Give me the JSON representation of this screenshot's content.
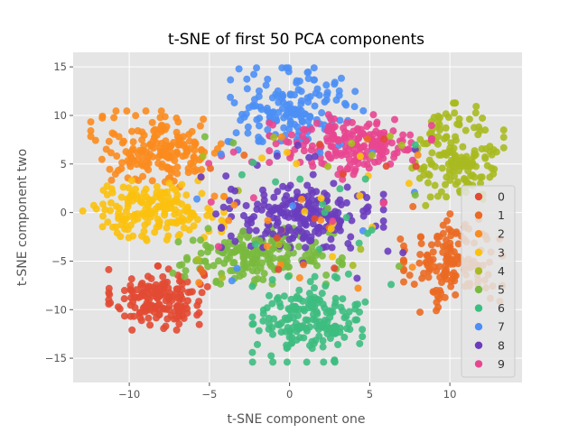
{
  "chart_data": {
    "type": "scatter",
    "title": "t-SNE of first 50 PCA components",
    "xlabel": "t-SNE component one",
    "ylabel": "t-SNE component two",
    "xlim": [
      -13.5,
      14.5
    ],
    "ylim": [
      -17.5,
      16.5
    ],
    "xticks": [
      -10,
      -5,
      0,
      5,
      10
    ],
    "yticks": [
      -15,
      -10,
      -5,
      0,
      5,
      10,
      15
    ],
    "grid": true,
    "legend_position": "bottom-right",
    "series": [
      {
        "name": "0",
        "color": "#E24A33",
        "cluster": {
          "cx": -8.2,
          "cy": -8.8,
          "sx": 1.4,
          "sy": 1.5,
          "n": 170
        }
      },
      {
        "name": "1",
        "color": "#EB6A24",
        "cluster": {
          "cx": 10.2,
          "cy": -5.2,
          "sx": 1.4,
          "sy": 2.3,
          "n": 150
        }
      },
      {
        "name": "2",
        "color": "#FB8B1E",
        "cluster": {
          "cx": -8.0,
          "cy": 6.5,
          "sx": 2.0,
          "sy": 1.8,
          "n": 180
        }
      },
      {
        "name": "3",
        "color": "#FBC10E",
        "cluster": {
          "cx": -8.5,
          "cy": 0.2,
          "sx": 2.0,
          "sy": 1.4,
          "n": 175
        }
      },
      {
        "name": "4",
        "color": "#A9BA20",
        "cluster": {
          "cx": 10.5,
          "cy": 6.0,
          "sx": 1.3,
          "sy": 2.4,
          "n": 160
        }
      },
      {
        "name": "5",
        "color": "#79BA3E",
        "cluster": {
          "cx": -2.0,
          "cy": -4.5,
          "sx": 2.4,
          "sy": 1.3,
          "n": 180
        }
      },
      {
        "name": "6",
        "color": "#3DBD80",
        "cluster": {
          "cx": 1.2,
          "cy": -11.0,
          "sx": 1.6,
          "sy": 2.0,
          "n": 180
        }
      },
      {
        "name": "7",
        "color": "#4D8FF5",
        "cluster": {
          "cx": 0.2,
          "cy": 10.5,
          "sx": 2.0,
          "sy": 2.0,
          "n": 165
        }
      },
      {
        "name": "8",
        "color": "#6A3DBE",
        "cluster": {
          "cx": 0.8,
          "cy": -0.3,
          "sx": 2.3,
          "sy": 1.5,
          "n": 200
        }
      },
      {
        "name": "9",
        "color": "#E84690",
        "cluster": {
          "cx": 3.8,
          "cy": 7.0,
          "sx": 2.3,
          "sy": 1.4,
          "n": 180
        }
      }
    ],
    "scatter_noise_count": 130
  }
}
